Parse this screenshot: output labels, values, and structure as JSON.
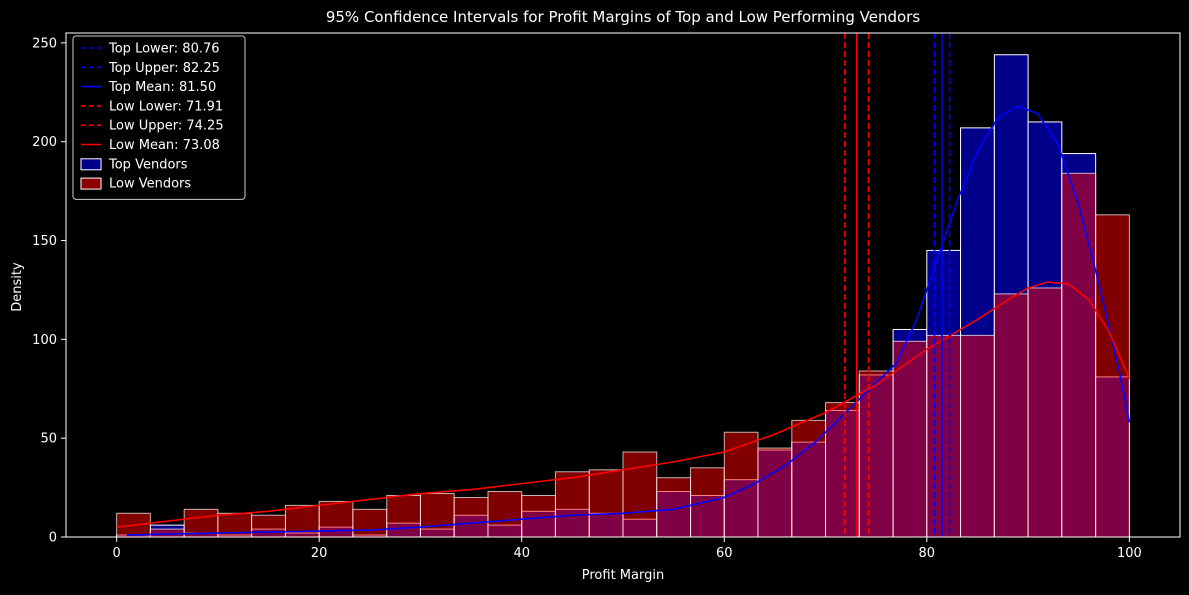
{
  "chart_data": {
    "type": "bar",
    "title": "95% Confidence Intervals for Profit Margins of Top and Low Performing Vendors",
    "xlabel": "Profit Margin",
    "ylabel": "Density",
    "xlim": [
      -5,
      105
    ],
    "ylim": [
      0,
      255
    ],
    "x_ticks": [
      0,
      20,
      40,
      60,
      80,
      100
    ],
    "y_ticks": [
      0,
      50,
      100,
      150,
      200,
      250
    ],
    "bin_edges": [
      0,
      3.33,
      6.67,
      10,
      13.33,
      16.67,
      20,
      23.33,
      26.67,
      30,
      33.33,
      36.67,
      40,
      43.33,
      46.67,
      50,
      53.33,
      56.67,
      60,
      63.33,
      66.67,
      70,
      73.33,
      76.67,
      80,
      83.33,
      86.67,
      90,
      93.33,
      96.67,
      100
    ],
    "series": [
      {
        "name": "Top Vendors",
        "color": "#00008b",
        "values": [
          1,
          6,
          2,
          1,
          4,
          2,
          5,
          1,
          7,
          4,
          11,
          6,
          13,
          14,
          12,
          9,
          23,
          21,
          29,
          44,
          48,
          64,
          82,
          105,
          145,
          207,
          244,
          210,
          194,
          81
        ]
      },
      {
        "name": "Low Vendors",
        "color": "#8b0000",
        "values": [
          12,
          4,
          14,
          12,
          11,
          16,
          18,
          14,
          21,
          22,
          20,
          23,
          21,
          33,
          34,
          43,
          30,
          35,
          53,
          45,
          59,
          68,
          84,
          99,
          102,
          102,
          123,
          126,
          184,
          163
        ]
      }
    ],
    "kde": [
      {
        "name": "Top Vendors",
        "color": "#0000ff",
        "points": [
          [
            1,
            1
          ],
          [
            5,
            1.5
          ],
          [
            10,
            2
          ],
          [
            15,
            2.5
          ],
          [
            20,
            3
          ],
          [
            25,
            3.5
          ],
          [
            30,
            5
          ],
          [
            35,
            7
          ],
          [
            40,
            9
          ],
          [
            45,
            11
          ],
          [
            50,
            12
          ],
          [
            55,
            14
          ],
          [
            60,
            20
          ],
          [
            63,
            27
          ],
          [
            66,
            36
          ],
          [
            69,
            48
          ],
          [
            72,
            63
          ],
          [
            75,
            78
          ],
          [
            77,
            88
          ],
          [
            79,
            110
          ],
          [
            81,
            140
          ],
          [
            83,
            170
          ],
          [
            85,
            195
          ],
          [
            87,
            212
          ],
          [
            89,
            218
          ],
          [
            91,
            214
          ],
          [
            93,
            198
          ],
          [
            95,
            168
          ],
          [
            97,
            128
          ],
          [
            99,
            84
          ],
          [
            100,
            58
          ]
        ]
      },
      {
        "name": "Low Vendors",
        "color": "#ff0000",
        "points": [
          [
            0,
            5
          ],
          [
            5,
            8
          ],
          [
            10,
            11
          ],
          [
            15,
            13
          ],
          [
            20,
            16
          ],
          [
            25,
            19
          ],
          [
            30,
            22
          ],
          [
            35,
            24
          ],
          [
            40,
            27
          ],
          [
            45,
            30
          ],
          [
            50,
            34
          ],
          [
            55,
            38
          ],
          [
            60,
            43
          ],
          [
            65,
            52
          ],
          [
            70,
            63
          ],
          [
            75,
            77
          ],
          [
            80,
            95
          ],
          [
            85,
            110
          ],
          [
            88,
            120
          ],
          [
            90,
            126
          ],
          [
            92,
            129
          ],
          [
            94,
            128
          ],
          [
            96,
            120
          ],
          [
            98,
            104
          ],
          [
            100,
            80
          ]
        ]
      }
    ],
    "vlines": [
      {
        "label": "Top Lower: 80.76",
        "x": 80.76,
        "color": "#0000ff",
        "style": "dashed"
      },
      {
        "label": "Top Upper: 82.25",
        "x": 82.25,
        "color": "#0000ff",
        "style": "dashed"
      },
      {
        "label": "Top Mean: 81.50",
        "x": 81.5,
        "color": "#0000ff",
        "style": "solid"
      },
      {
        "label": "Low Lower: 71.91",
        "x": 71.91,
        "color": "#ff0000",
        "style": "dashed"
      },
      {
        "label": "Low Upper: 74.25",
        "x": 74.25,
        "color": "#ff0000",
        "style": "dashed"
      },
      {
        "label": "Low Mean: 73.08",
        "x": 73.08,
        "color": "#ff0000",
        "style": "solid"
      }
    ],
    "legend": {
      "placement": "top-left",
      "entries": [
        {
          "label": "Top Lower: 80.76",
          "kind": "dashed-line",
          "color": "#0000ff"
        },
        {
          "label": "Top Upper: 82.25",
          "kind": "dashed-line",
          "color": "#0000ff"
        },
        {
          "label": "Top Mean: 81.50",
          "kind": "solid-line",
          "color": "#0000ff"
        },
        {
          "label": "Low Lower: 71.91",
          "kind": "dashed-line",
          "color": "#ff0000"
        },
        {
          "label": "Low Upper: 74.25",
          "kind": "dashed-line",
          "color": "#ff0000"
        },
        {
          "label": "Low Mean: 73.08",
          "kind": "solid-line",
          "color": "#ff0000"
        },
        {
          "label": "Top Vendors",
          "kind": "patch",
          "color": "#00008b"
        },
        {
          "label": "Low Vendors",
          "kind": "patch",
          "color": "#8b0000"
        }
      ]
    },
    "grid": false,
    "background": "#000000",
    "bar_edge_color": "#ffffff"
  }
}
